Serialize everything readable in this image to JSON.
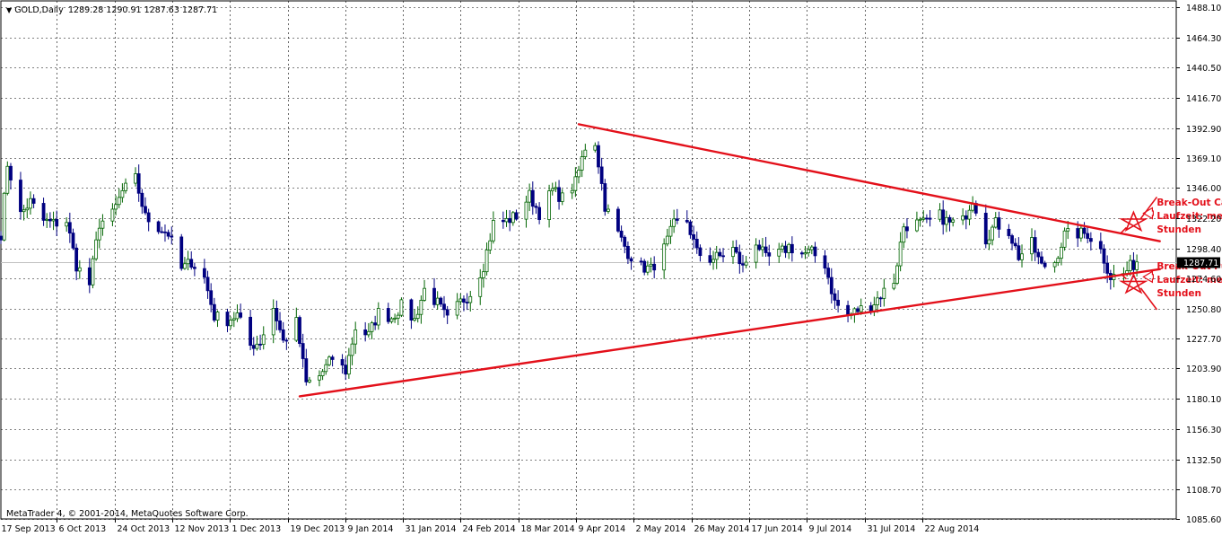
{
  "colors": {
    "bull_body": "#ffffff",
    "bull_wick": "#006400",
    "bear_body": "#000080",
    "bear_wick": "#000080",
    "trendline": "#e3101a",
    "grid": "#000000",
    "current_price_label_bg": "#000000",
    "current_price_line": "#c0c0c0"
  },
  "header": {
    "symbol": "GOLD,Daily",
    "ohlc": "1289.28 1290.91 1287.63 1287.71"
  },
  "copyright": "MetaTrader 4, © 2001-2014, MetaQuotes Software Corp.",
  "current_price": {
    "value": 1287.71,
    "label": "1287.71"
  },
  "annotations": [
    {
      "lines": [
        "Break-Out Call",
        "Laufzeit: mehrere",
        "Stunden"
      ],
      "x": "2014-09-03",
      "y": 1332
    },
    {
      "lines": [
        "Break-Out Put",
        "Laufzeit: mehrere",
        "Stunden"
      ],
      "x": "2014-09-03",
      "y": 1282
    }
  ],
  "chart_data": {
    "type": "candlestick",
    "symbol": "GOLD",
    "timeframe": "Daily",
    "x_start": "2013-09-17",
    "x_end": "2014-09-10",
    "ylim": [
      1085.6,
      1493.0
    ],
    "y_ticks": [
      1488.1,
      1464.3,
      1440.5,
      1416.7,
      1392.9,
      1369.1,
      1346.0,
      1322.2,
      1298.4,
      1274.6,
      1250.8,
      1227.7,
      1203.9,
      1180.1,
      1156.3,
      1132.5,
      1108.7,
      1085.6
    ],
    "y_tick_labels": [
      "1488.10",
      "1464.30",
      "1440.50",
      "1416.70",
      "1392.90",
      "1369.10",
      "1346.00",
      "1322.20",
      "1298.40",
      "1274.60",
      "1250.80",
      "1227.70",
      "1203.90",
      "1180.10",
      "1156.30",
      "1132.50",
      "1108.70",
      "1085.60"
    ],
    "x_tick_labels": [
      "17 Sep 2013",
      "6 Oct 2013",
      "24 Oct 2013",
      "12 Nov 2013",
      "1 Dec 2013",
      "19 Dec 2013",
      "9 Jan 2014",
      "31 Jan 2014",
      "24 Feb 2014",
      "18 Mar 2014",
      "9 Apr 2014",
      "2 May 2014",
      "26 May 2014",
      "17 Jun 2014",
      "9 Jul 2014",
      "31 Jul 2014",
      "22 Aug 2014"
    ],
    "grid": true,
    "trendlines": [
      {
        "name": "resistance",
        "from": [
          "2014-03-12",
          1396
        ],
        "to": [
          "2014-09-05",
          1304
        ]
      },
      {
        "name": "support",
        "from": [
          "2013-12-17",
          1182
        ],
        "to": [
          "2014-09-05",
          1282
        ]
      }
    ],
    "markers": [
      {
        "type": "star",
        "x": "2014-08-28",
        "y": 1319
      },
      {
        "type": "star",
        "x": "2014-08-28",
        "y": 1270
      }
    ],
    "arrows": [
      {
        "from": [
          "2014-09-03",
          1326
        ],
        "to": [
          "2014-08-31",
          1326
        ]
      },
      {
        "from": [
          "2014-09-03",
          1276
        ],
        "to": [
          "2014-08-31",
          1276
        ]
      }
    ],
    "keypoints": [
      [
        "2013-09-17",
        1310
      ],
      [
        "2013-09-19",
        1365
      ],
      [
        "2013-09-23",
        1325
      ],
      [
        "2013-09-26",
        1335
      ],
      [
        "2013-09-30",
        1320
      ],
      [
        "2013-10-03",
        1318
      ],
      [
        "2013-10-07",
        1320
      ],
      [
        "2013-10-10",
        1285
      ],
      [
        "2013-10-14",
        1270
      ],
      [
        "2013-10-17",
        1318
      ],
      [
        "2013-10-21",
        1325
      ],
      [
        "2013-10-24",
        1343
      ],
      [
        "2013-10-28",
        1353
      ],
      [
        "2013-10-31",
        1323
      ],
      [
        "2013-11-04",
        1315
      ],
      [
        "2013-11-07",
        1310
      ],
      [
        "2013-11-11",
        1282
      ],
      [
        "2013-11-14",
        1288
      ],
      [
        "2013-11-18",
        1275
      ],
      [
        "2013-11-21",
        1245
      ],
      [
        "2013-11-25",
        1242
      ],
      [
        "2013-11-28",
        1246
      ],
      [
        "2013-12-02",
        1222
      ],
      [
        "2013-12-05",
        1225
      ],
      [
        "2013-12-09",
        1252
      ],
      [
        "2013-12-12",
        1225
      ],
      [
        "2013-12-16",
        1240
      ],
      [
        "2013-12-19",
        1192
      ],
      [
        "2013-12-23",
        1198
      ],
      [
        "2013-12-27",
        1212
      ],
      [
        "2013-12-31",
        1202
      ],
      [
        "2014-01-03",
        1236
      ],
      [
        "2014-01-07",
        1230
      ],
      [
        "2014-01-10",
        1248
      ],
      [
        "2014-01-14",
        1244
      ],
      [
        "2014-01-17",
        1253
      ],
      [
        "2014-01-21",
        1242
      ],
      [
        "2014-01-24",
        1266
      ],
      [
        "2014-01-28",
        1255
      ],
      [
        "2014-01-31",
        1242
      ],
      [
        "2014-02-04",
        1256
      ],
      [
        "2014-02-07",
        1263
      ],
      [
        "2014-02-11",
        1285
      ],
      [
        "2014-02-14",
        1318
      ],
      [
        "2014-02-18",
        1320
      ],
      [
        "2014-02-21",
        1324
      ],
      [
        "2014-02-25",
        1340
      ],
      [
        "2014-02-28",
        1326
      ],
      [
        "2014-03-04",
        1344
      ],
      [
        "2014-03-07",
        1338
      ],
      [
        "2014-03-11",
        1350
      ],
      [
        "2014-03-14",
        1378
      ],
      [
        "2014-03-17",
        1382
      ],
      [
        "2014-03-20",
        1332
      ],
      [
        "2014-03-24",
        1310
      ],
      [
        "2014-03-27",
        1295
      ],
      [
        "2014-03-31",
        1284
      ],
      [
        "2014-04-03",
        1282
      ],
      [
        "2014-04-07",
        1298
      ],
      [
        "2014-04-10",
        1317
      ],
      [
        "2014-04-14",
        1320
      ],
      [
        "2014-04-17",
        1295
      ],
      [
        "2014-04-21",
        1290
      ],
      [
        "2014-04-24",
        1292
      ],
      [
        "2014-04-28",
        1298
      ],
      [
        "2014-05-01",
        1283
      ],
      [
        "2014-05-05",
        1304
      ],
      [
        "2014-05-08",
        1290
      ],
      [
        "2014-05-12",
        1294
      ],
      [
        "2014-05-15",
        1300
      ],
      [
        "2014-05-19",
        1294
      ],
      [
        "2014-05-22",
        1295
      ],
      [
        "2014-05-26",
        1286
      ],
      [
        "2014-05-29",
        1256
      ],
      [
        "2014-06-02",
        1245
      ],
      [
        "2014-06-05",
        1250
      ],
      [
        "2014-06-09",
        1253
      ],
      [
        "2014-06-12",
        1262
      ],
      [
        "2014-06-16",
        1273
      ],
      [
        "2014-06-19",
        1316
      ],
      [
        "2014-06-23",
        1318
      ],
      [
        "2014-06-26",
        1318
      ],
      [
        "2014-06-30",
        1324
      ],
      [
        "2014-07-03",
        1318
      ],
      [
        "2014-07-07",
        1320
      ],
      [
        "2014-07-10",
        1338
      ],
      [
        "2014-07-14",
        1306
      ],
      [
        "2014-07-17",
        1318
      ],
      [
        "2014-07-21",
        1312
      ],
      [
        "2014-07-24",
        1292
      ],
      [
        "2014-07-28",
        1302
      ],
      [
        "2014-07-31",
        1284
      ],
      [
        "2014-08-04",
        1288
      ],
      [
        "2014-08-07",
        1309
      ],
      [
        "2014-08-11",
        1310
      ],
      [
        "2014-08-14",
        1310
      ],
      [
        "2014-08-18",
        1297
      ],
      [
        "2014-08-21",
        1276
      ],
      [
        "2014-08-25",
        1278
      ],
      [
        "2014-08-27",
        1284
      ],
      [
        "2014-08-29",
        1287.71
      ]
    ]
  }
}
